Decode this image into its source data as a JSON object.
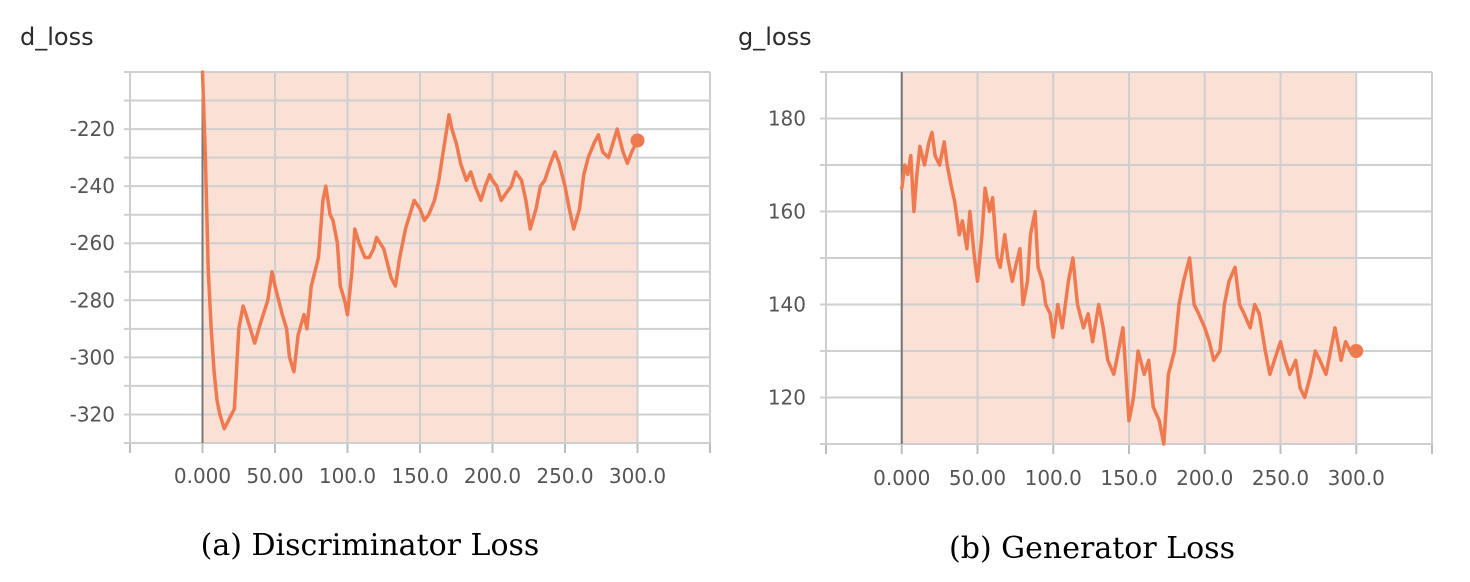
{
  "chart_data": [
    {
      "type": "line",
      "title": "d_loss",
      "caption": "(a) Discriminator Loss",
      "xlim": [
        -50,
        350
      ],
      "ylim": [
        -330,
        -200
      ],
      "xticks": [
        0,
        50,
        100,
        150,
        200,
        250,
        300
      ],
      "xtick_labels": [
        "0.000",
        "50.00",
        "100.0",
        "150.0",
        "200.0",
        "250.0",
        "300.0"
      ],
      "yticks": [
        -320,
        -300,
        -280,
        -260,
        -240,
        -220
      ],
      "ytick_labels": [
        "-320",
        "-300",
        "-280",
        "-260",
        "-240",
        "-220"
      ],
      "grid": true,
      "colors": {
        "smoothed": "#f07a4f",
        "raw": "#fbe0d6"
      },
      "raw_band": {
        "x": [
          0,
          300
        ],
        "y": [
          -330,
          -200
        ]
      },
      "series": [
        {
          "x": [
            0,
            2,
            4,
            6,
            8,
            10,
            12,
            15,
            18,
            22,
            25,
            28,
            30,
            33,
            36,
            40,
            45,
            48,
            50,
            55,
            58,
            60,
            63,
            66,
            70,
            72,
            75,
            80,
            83,
            85,
            88,
            90,
            93,
            95,
            98,
            100,
            103,
            105,
            108,
            112,
            115,
            118,
            120,
            125,
            128,
            130,
            133,
            136,
            140,
            143,
            146,
            150,
            153,
            156,
            160,
            163,
            166,
            170,
            172,
            175,
            178,
            182,
            185,
            188,
            192,
            195,
            198,
            200,
            203,
            206,
            210,
            213,
            216,
            220,
            223,
            226,
            230,
            233,
            236,
            240,
            243,
            246,
            250,
            253,
            256,
            260,
            263,
            266,
            270,
            273,
            276,
            280,
            283,
            286,
            290,
            293,
            296,
            300
          ],
          "y": [
            -200,
            -230,
            -270,
            -290,
            -305,
            -315,
            -320,
            -325,
            -322,
            -318,
            -290,
            -282,
            -285,
            -290,
            -295,
            -288,
            -280,
            -270,
            -275,
            -285,
            -290,
            -300,
            -305,
            -292,
            -285,
            -290,
            -275,
            -265,
            -245,
            -240,
            -250,
            -252,
            -260,
            -275,
            -280,
            -285,
            -270,
            -255,
            -260,
            -265,
            -265,
            -262,
            -258,
            -262,
            -268,
            -272,
            -275,
            -265,
            -255,
            -250,
            -245,
            -248,
            -252,
            -250,
            -245,
            -238,
            -228,
            -215,
            -220,
            -225,
            -232,
            -238,
            -235,
            -240,
            -245,
            -240,
            -236,
            -238,
            -240,
            -245,
            -242,
            -240,
            -235,
            -238,
            -245,
            -255,
            -248,
            -240,
            -238,
            -232,
            -228,
            -232,
            -240,
            -248,
            -255,
            -248,
            -236,
            -230,
            -225,
            -222,
            -228,
            -230,
            -225,
            -220,
            -228,
            -232,
            -228,
            -224
          ]
        }
      ]
    },
    {
      "type": "line",
      "title": "g_loss",
      "caption": "(b) Generator Loss",
      "xlim": [
        -50,
        350
      ],
      "ylim": [
        110,
        190
      ],
      "xticks": [
        0,
        50,
        100,
        150,
        200,
        250,
        300
      ],
      "xtick_labels": [
        "0.000",
        "50.00",
        "100.0",
        "150.0",
        "200.0",
        "250.0",
        "300.0"
      ],
      "yticks": [
        120,
        140,
        160,
        180
      ],
      "ytick_labels": [
        "120",
        "140",
        "160",
        "180"
      ],
      "grid": true,
      "colors": {
        "smoothed": "#f07a4f",
        "raw": "#fbe0d6"
      },
      "raw_band": {
        "x": [
          0,
          300
        ],
        "y": [
          110,
          190
        ]
      },
      "series": [
        {
          "x": [
            0,
            2,
            4,
            6,
            8,
            10,
            12,
            15,
            18,
            20,
            22,
            25,
            28,
            30,
            33,
            35,
            38,
            40,
            43,
            45,
            48,
            50,
            53,
            55,
            58,
            60,
            63,
            65,
            68,
            70,
            73,
            75,
            78,
            80,
            83,
            85,
            88,
            90,
            93,
            95,
            98,
            100,
            103,
            106,
            110,
            113,
            116,
            120,
            123,
            126,
            130,
            133,
            136,
            140,
            143,
            146,
            150,
            153,
            156,
            160,
            163,
            166,
            170,
            173,
            176,
            180,
            183,
            186,
            190,
            193,
            196,
            200,
            203,
            206,
            210,
            213,
            216,
            220,
            223,
            226,
            230,
            233,
            236,
            240,
            243,
            246,
            250,
            253,
            256,
            260,
            263,
            266,
            270,
            273,
            276,
            280,
            283,
            286,
            290,
            293,
            296,
            300
          ],
          "y": [
            165,
            170,
            168,
            172,
            160,
            168,
            174,
            170,
            175,
            177,
            172,
            170,
            175,
            170,
            165,
            162,
            155,
            158,
            152,
            160,
            150,
            145,
            155,
            165,
            160,
            163,
            150,
            148,
            155,
            150,
            145,
            148,
            152,
            140,
            145,
            155,
            160,
            148,
            145,
            140,
            138,
            133,
            140,
            135,
            145,
            150,
            140,
            135,
            138,
            132,
            140,
            135,
            128,
            125,
            130,
            135,
            115,
            120,
            130,
            125,
            128,
            118,
            115,
            110,
            125,
            130,
            140,
            145,
            150,
            140,
            138,
            135,
            132,
            128,
            130,
            140,
            145,
            148,
            140,
            138,
            135,
            140,
            138,
            130,
            125,
            128,
            132,
            128,
            125,
            128,
            122,
            120,
            125,
            130,
            128,
            125,
            130,
            135,
            128,
            132,
            130,
            130
          ]
        }
      ]
    }
  ]
}
